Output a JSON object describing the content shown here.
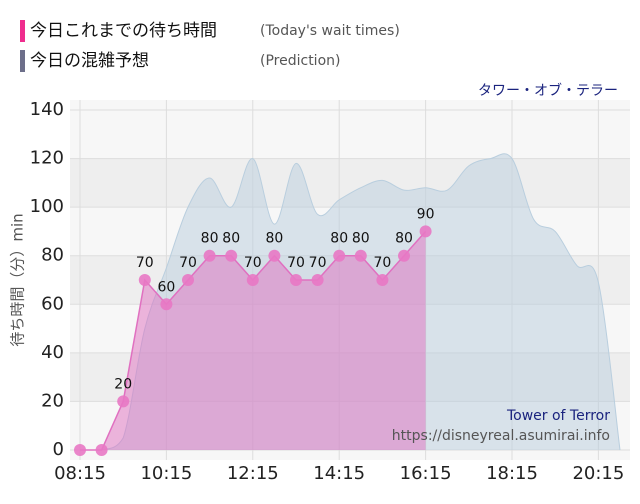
{
  "chart_data": {
    "type": "area",
    "title": "タワー・オブ・テラー",
    "y_label": "待ち時間（分）min",
    "watermark": [
      "Tower of Terror",
      "https://disneyreal.asumirai.info"
    ],
    "xlim": [
      "08:15",
      "20:45"
    ],
    "xticks": [
      "08:15",
      "10:15",
      "12:15",
      "14:15",
      "16:15",
      "18:15",
      "20:15"
    ],
    "ylim": [
      0,
      140
    ],
    "yticks": [
      0,
      20,
      40,
      60,
      80,
      100,
      120,
      140
    ],
    "grid": true,
    "series": [
      {
        "name": "今日の混雑予想",
        "subtitle": "(Prediction)",
        "color": "#b9cede",
        "legend_color": "#6d6f8a",
        "x": [
          "08:15",
          "08:45",
          "09:15",
          "09:45",
          "10:15",
          "10:45",
          "11:15",
          "11:45",
          "12:15",
          "12:45",
          "13:15",
          "13:45",
          "14:15",
          "14:45",
          "15:15",
          "15:45",
          "16:15",
          "16:45",
          "17:15",
          "17:45",
          "18:15",
          "18:45",
          "19:15",
          "19:45",
          "20:15",
          "20:45"
        ],
        "values": [
          0,
          0,
          5,
          50,
          75,
          100,
          112,
          100,
          120,
          93,
          118,
          97,
          103,
          108,
          111,
          107,
          108,
          107,
          117,
          120,
          120,
          95,
          90,
          76,
          69,
          0
        ]
      },
      {
        "name": "今日これまでの待ち時間",
        "subtitle": "(Today's wait times)",
        "color": "#e070c0",
        "legend_color": "#ef2d8e",
        "x": [
          "08:15",
          "08:45",
          "09:15",
          "09:45",
          "10:15",
          "10:45",
          "11:15",
          "11:45",
          "12:15",
          "12:45",
          "13:15",
          "13:45",
          "14:15",
          "14:45",
          "15:15",
          "15:45",
          "16:15"
        ],
        "values": [
          0,
          0,
          20,
          70,
          60,
          70,
          80,
          80,
          70,
          80,
          70,
          70,
          80,
          80,
          70,
          80,
          90
        ],
        "value_labels": [
          null,
          null,
          "20",
          "70",
          "60",
          "70",
          "80",
          "80",
          "70",
          "80",
          "70",
          "70",
          "80",
          "80",
          "70",
          "80",
          "90"
        ]
      }
    ]
  }
}
